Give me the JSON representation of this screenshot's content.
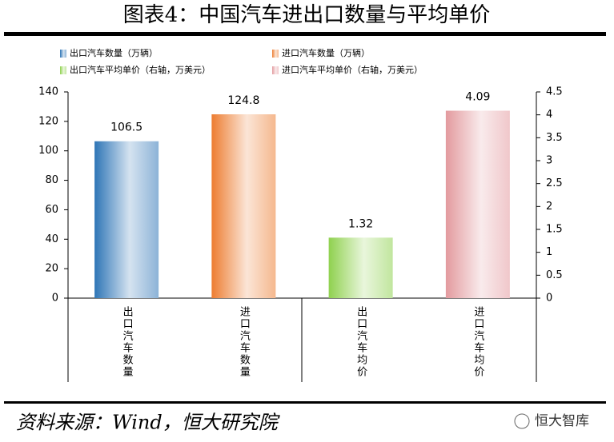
{
  "chart_data": {
    "type": "bar",
    "title": "图表4：中国汽车进出口数量与平均单价",
    "categories": [
      "出口汽车数量",
      "进口汽车数量",
      "出口汽车均价",
      "进口汽车均价"
    ],
    "series": [
      {
        "name": "出口汽车数量（万辆）",
        "color": "#2e75b6",
        "values": [
          106.5,
          null,
          null,
          null
        ]
      },
      {
        "name": "进口汽车数量（万辆）",
        "color": "#ed7d31",
        "values": [
          null,
          124.8,
          null,
          null
        ]
      },
      {
        "name": "出口汽车平均单价（右轴，万美元）",
        "color": "#8fd14f",
        "values": [
          null,
          null,
          1.32,
          null
        ],
        "axis": "y2"
      },
      {
        "name": "进口汽车平均单价（右轴，万美元）",
        "color": "#e39a9e",
        "values": [
          null,
          null,
          null,
          4.09
        ],
        "axis": "y2"
      }
    ],
    "ylim": [
      0,
      140
    ],
    "yticks": [
      0,
      20,
      40,
      60,
      80,
      100,
      120,
      140
    ],
    "y2lim": [
      0,
      4.5
    ],
    "y2ticks": [
      0,
      0.5,
      1,
      1.5,
      2,
      2.5,
      3,
      3.5,
      4,
      4.5
    ],
    "source": "资料来源：Wind，恒大研究院",
    "watermark": "恒大智库"
  }
}
